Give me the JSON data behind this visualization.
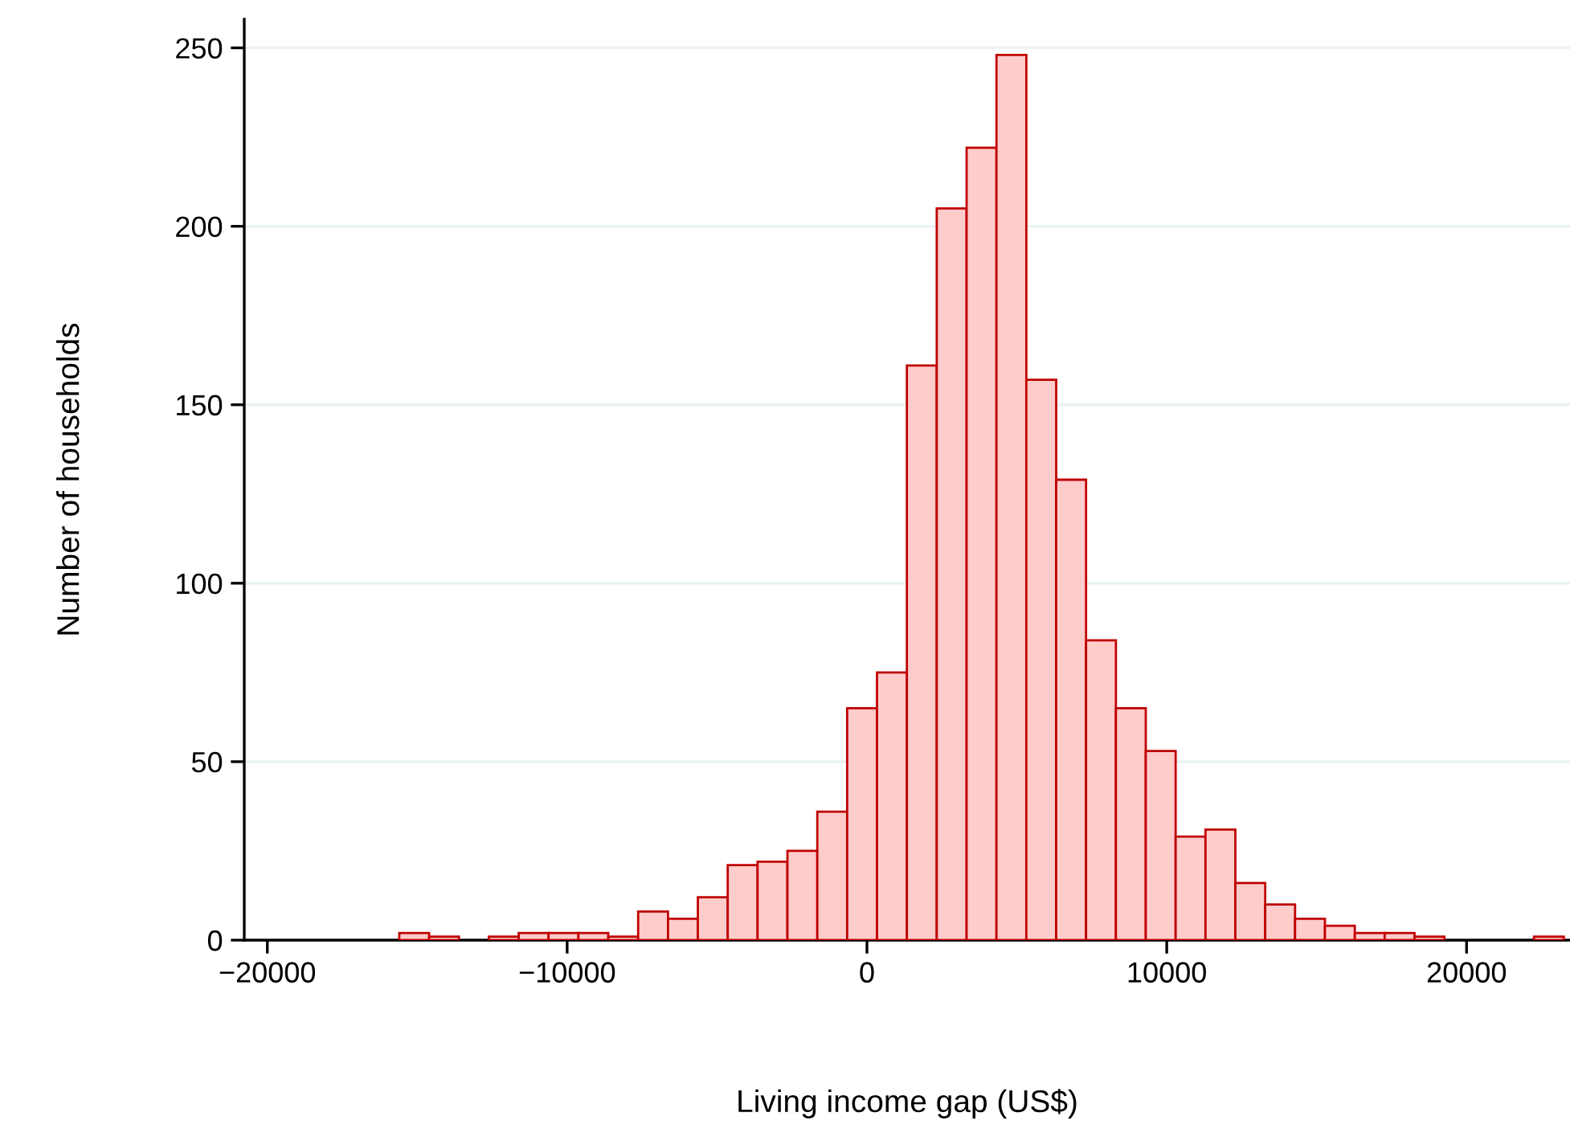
{
  "chart_data": {
    "type": "histogram",
    "xlabel": "Living income gap (US$)",
    "ylabel": "Number of households",
    "bins": [
      -15600,
      -14604,
      -13608,
      -12612,
      -11616,
      -10620,
      -9624,
      -8628,
      -7632,
      -6636,
      -5640,
      -4644,
      -3648,
      -2652,
      -1656,
      -660,
      336,
      1332,
      2328,
      3324,
      4320,
      5316,
      6312,
      7308,
      8304,
      9300,
      10296,
      11292,
      12288,
      13284,
      14280,
      15276,
      16272,
      17268,
      18264,
      19260,
      20256,
      21252,
      22248,
      23244
    ],
    "values": [
      2,
      1,
      0,
      1,
      2,
      2,
      2,
      1,
      8,
      6,
      12,
      21,
      22,
      25,
      36,
      65,
      75,
      161,
      205,
      222,
      248,
      157,
      129,
      84,
      65,
      53,
      29,
      31,
      16,
      10,
      6,
      4,
      2,
      2,
      1,
      0,
      0,
      0,
      1
    ],
    "color": "#ffcccc",
    "xlim": [
      -20770,
      23450
    ],
    "ylim": [
      0,
      258
    ],
    "xticks": [
      {
        "value": -20000,
        "label": "−20000"
      },
      {
        "value": -10000,
        "label": "−10000"
      },
      0,
      10000,
      20000
    ],
    "yticks": [
      0,
      50,
      100,
      150,
      200,
      250
    ],
    "grid": "y"
  }
}
